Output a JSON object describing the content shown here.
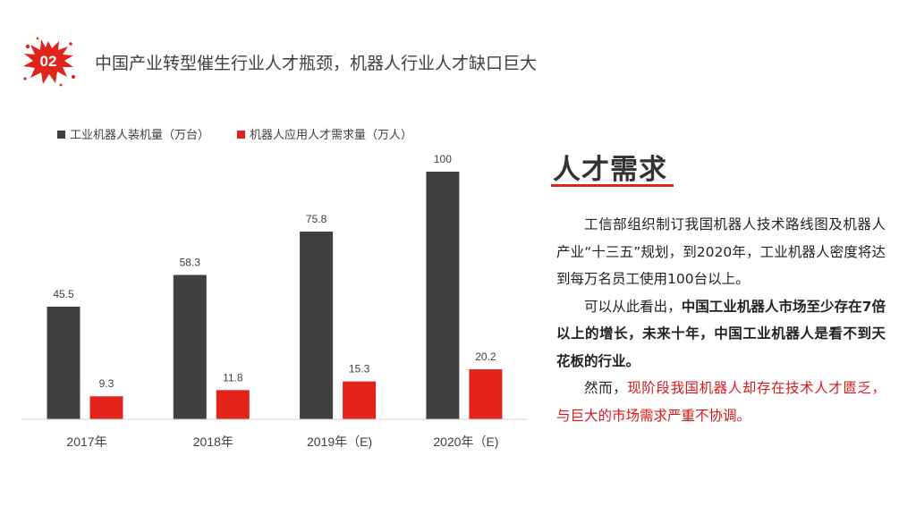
{
  "header": {
    "badge_number": "02",
    "title": "中国产业转型催生行业人才瓶颈，机器人行业人才缺口巨大",
    "icon": "red-paint-splash-icon"
  },
  "chart_data": {
    "type": "bar",
    "categories": [
      "2017年",
      "2018年",
      "2019年（E)",
      "2020年（E)"
    ],
    "series": [
      {
        "name": "工业机器人装机量（万台）",
        "values": [
          45.5,
          58.3,
          75.8,
          100
        ],
        "labels": [
          "45.5",
          "58.3",
          "75.8",
          "100"
        ],
        "color": "#404040"
      },
      {
        "name": "机器人应用人才需求量（万人）",
        "values": [
          9.3,
          11.8,
          15.3,
          20.2
        ],
        "labels": [
          "9.3",
          "11.8",
          "15.3",
          "20.2"
        ],
        "color": "#e2231a"
      }
    ],
    "ylim": [
      0,
      100
    ],
    "grid": false,
    "legend": "top-left"
  },
  "panel": {
    "heading": "人才需求",
    "p1": "工信部组织制订我国机器人技术路线图及机器人产业“十三五”规划，到2020年，工业机器人密度将达到每万名员工使用100台以上。",
    "p2_start": "可以从此看出，",
    "p2_bold": "中国工业机器人市场至少存在7倍以上的增长，未来十年，中国工业机器人是看不到天花板的行业。",
    "p3_start": "然而，",
    "p3_red": "现阶段我国机器人却存在技术人才匮乏，与巨大的市场需求严重不协调。"
  },
  "colors": {
    "accent": "#e2231a",
    "bar_dark": "#404040"
  }
}
